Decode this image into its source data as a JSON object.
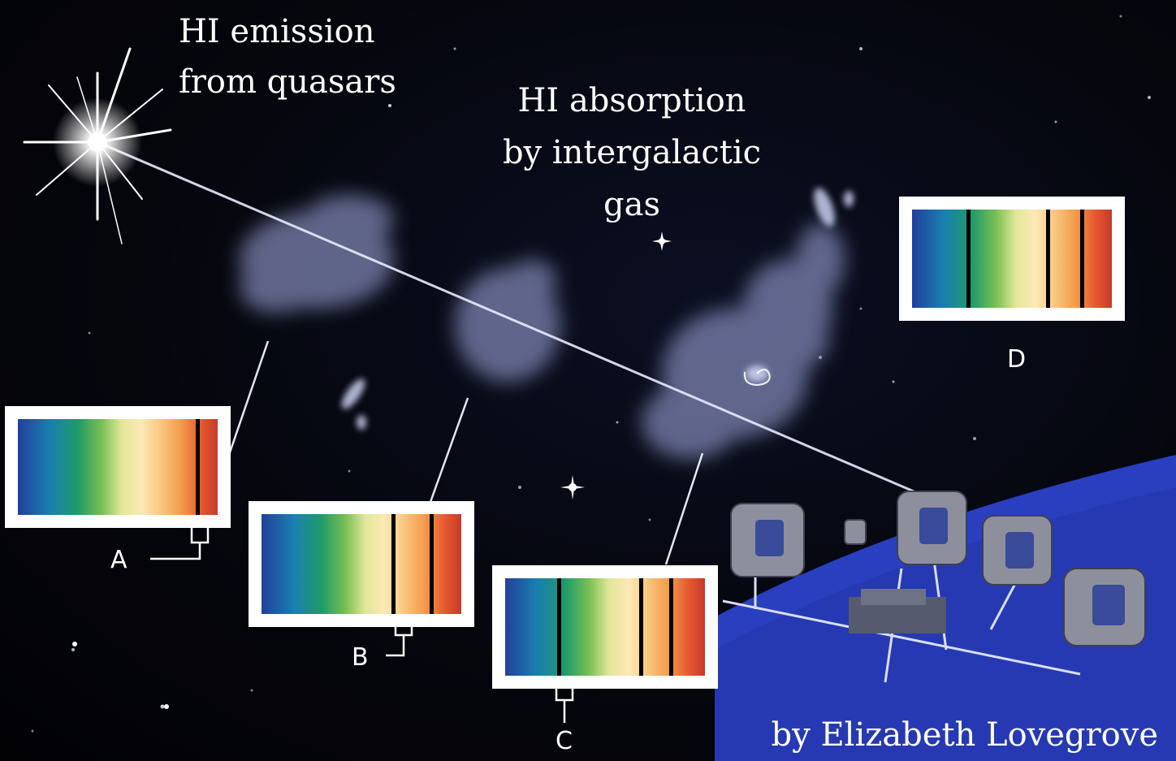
{
  "captions": {
    "emission": "HI emission\nfrom quasars",
    "absorption": "HI absorption by intergalactic gas",
    "credit": "by Elizabeth Lovegrove"
  },
  "spectra": [
    {
      "label": "A",
      "absorption_lines_pct": [
        90
      ]
    },
    {
      "label": "B",
      "absorption_lines_pct": [
        66,
        85
      ]
    },
    {
      "label": "C",
      "absorption_lines_pct": [
        27,
        68,
        83
      ]
    },
    {
      "label": "D",
      "absorption_lines_pct": [
        28,
        68,
        85
      ]
    }
  ],
  "colors": {
    "sky": "#05060d",
    "telescope_platform": "#2a3fc0",
    "gas_cloud": "#8f96c8"
  }
}
